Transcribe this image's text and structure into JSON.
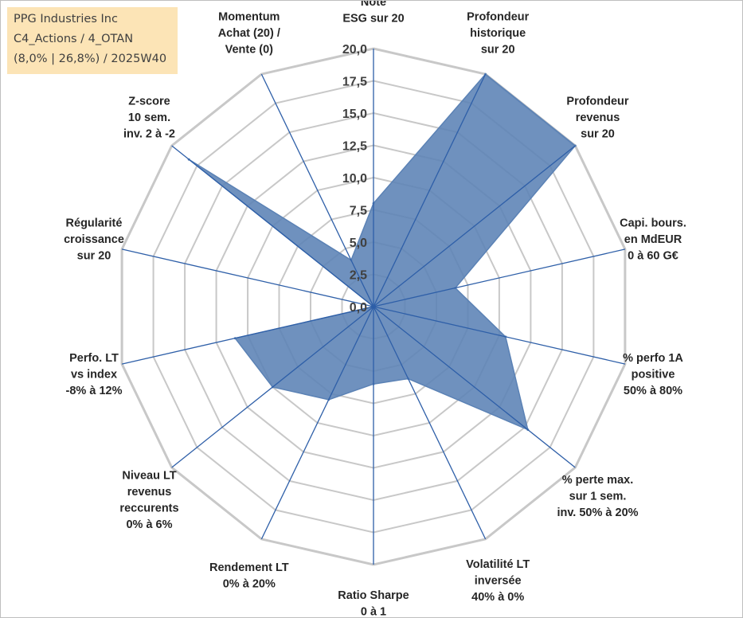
{
  "info": {
    "line1": "PPG Industries Inc",
    "line2": "C4_Actions / 4_OTAN",
    "line3": "(8,0% | 26,8%) / 2025W40"
  },
  "colors": {
    "fill": "#5b82b5",
    "axis": "#2e5fa8",
    "grid": "#c8c8c8"
  },
  "chart_data": {
    "type": "radar",
    "rmin": 0,
    "rmax": 20,
    "ticks": [
      "0,0",
      "2,5",
      "5,0",
      "7,5",
      "10,0",
      "12,5",
      "15,0",
      "17,5",
      "20,0"
    ],
    "tick_values": [
      0,
      2.5,
      5,
      7.5,
      10,
      12.5,
      15,
      17.5,
      20
    ],
    "grid": true,
    "axes": [
      {
        "label": [
          "Note",
          "ESG sur 20"
        ],
        "value": 8.0
      },
      {
        "label": [
          "Profondeur",
          "historique",
          "sur 20"
        ],
        "value": 20.0
      },
      {
        "label": [
          "Profondeur",
          "revenus",
          "sur 20"
        ],
        "value": 20.0
      },
      {
        "label": [
          "Capi. bours.",
          "en MdEUR",
          "0 à 60 G€"
        ],
        "value": 6.5
      },
      {
        "label": [
          "% perfo 1A",
          "positive",
          "50% à 80%"
        ],
        "value": 10.5
      },
      {
        "label": [
          "% perte max.",
          "sur 1 sem.",
          "inv. 50% à 20%"
        ],
        "value": 15.3
      },
      {
        "label": [
          "Volatilité LT",
          "inversée",
          "40% à 0%"
        ],
        "value": 6.2
      },
      {
        "label": [
          "Ratio Sharpe",
          "0 à 1"
        ],
        "value": 6.0
      },
      {
        "label": [
          "Rendement LT",
          "0% à 20%"
        ],
        "value": 8.0
      },
      {
        "label": [
          "Niveau LT",
          "revenus",
          "reccurents",
          "0% à 6%"
        ],
        "value": 10.0
      },
      {
        "label": [
          "Perfo. LT",
          "vs index",
          "-8% à 12%"
        ],
        "value": 11.0
      },
      {
        "label": [
          "Régularité",
          "croissance",
          "sur 20"
        ],
        "value": 0
      },
      {
        "label": [
          "Z-score",
          "10 sem.",
          "inv. 2 à -2"
        ],
        "value": 18.3
      },
      {
        "label": [
          "Momentum",
          "Achat (20) /",
          "Vente (0)"
        ],
        "value": 4.0
      }
    ]
  }
}
